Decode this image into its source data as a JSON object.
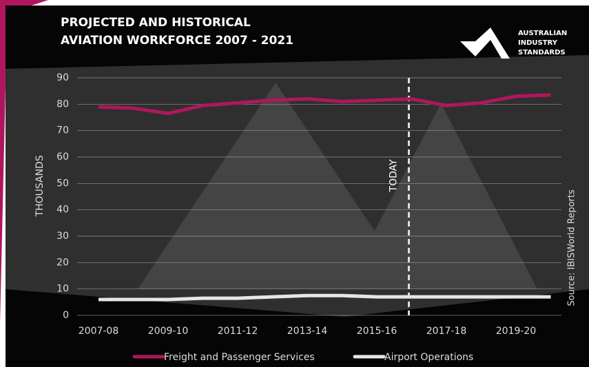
{
  "title_lines": [
    "PROJECTED AND HISTORICAL",
    "AVIATION WORKFORCE 2007 - 2021"
  ],
  "logo": [
    "AUSTRALIAN",
    "INDUSTRY",
    "STANDARDS"
  ],
  "source": "Source: IBISWorld Reports",
  "chart_data": {
    "type": "line",
    "y_label": "THOUSANDS",
    "annotation": "TODAY",
    "categories": [
      "2007-08",
      null,
      "2009-10",
      null,
      "2011-12",
      null,
      "2013-14",
      null,
      "2015-16",
      null,
      "2017-18",
      null,
      "2019-20",
      null
    ],
    "series": [
      {
        "name": "Freight and Passenger Services",
        "color": "#b0165e",
        "values": [
          79,
          78.5,
          76.5,
          79.5,
          80.5,
          81.5,
          82,
          81,
          81.5,
          82,
          79.5,
          80.5,
          83,
          83.5
        ]
      },
      {
        "name": "Airport Operations",
        "color": "#e6e6e6",
        "values": [
          6,
          6,
          6,
          6.5,
          6.5,
          7,
          7.5,
          7.5,
          7,
          7,
          7,
          7,
          7,
          7
        ]
      }
    ],
    "ylim": [
      0,
      90
    ],
    "yticks": [
      0,
      10,
      20,
      30,
      40,
      50,
      60,
      70,
      80,
      90
    ],
    "grid": true
  }
}
